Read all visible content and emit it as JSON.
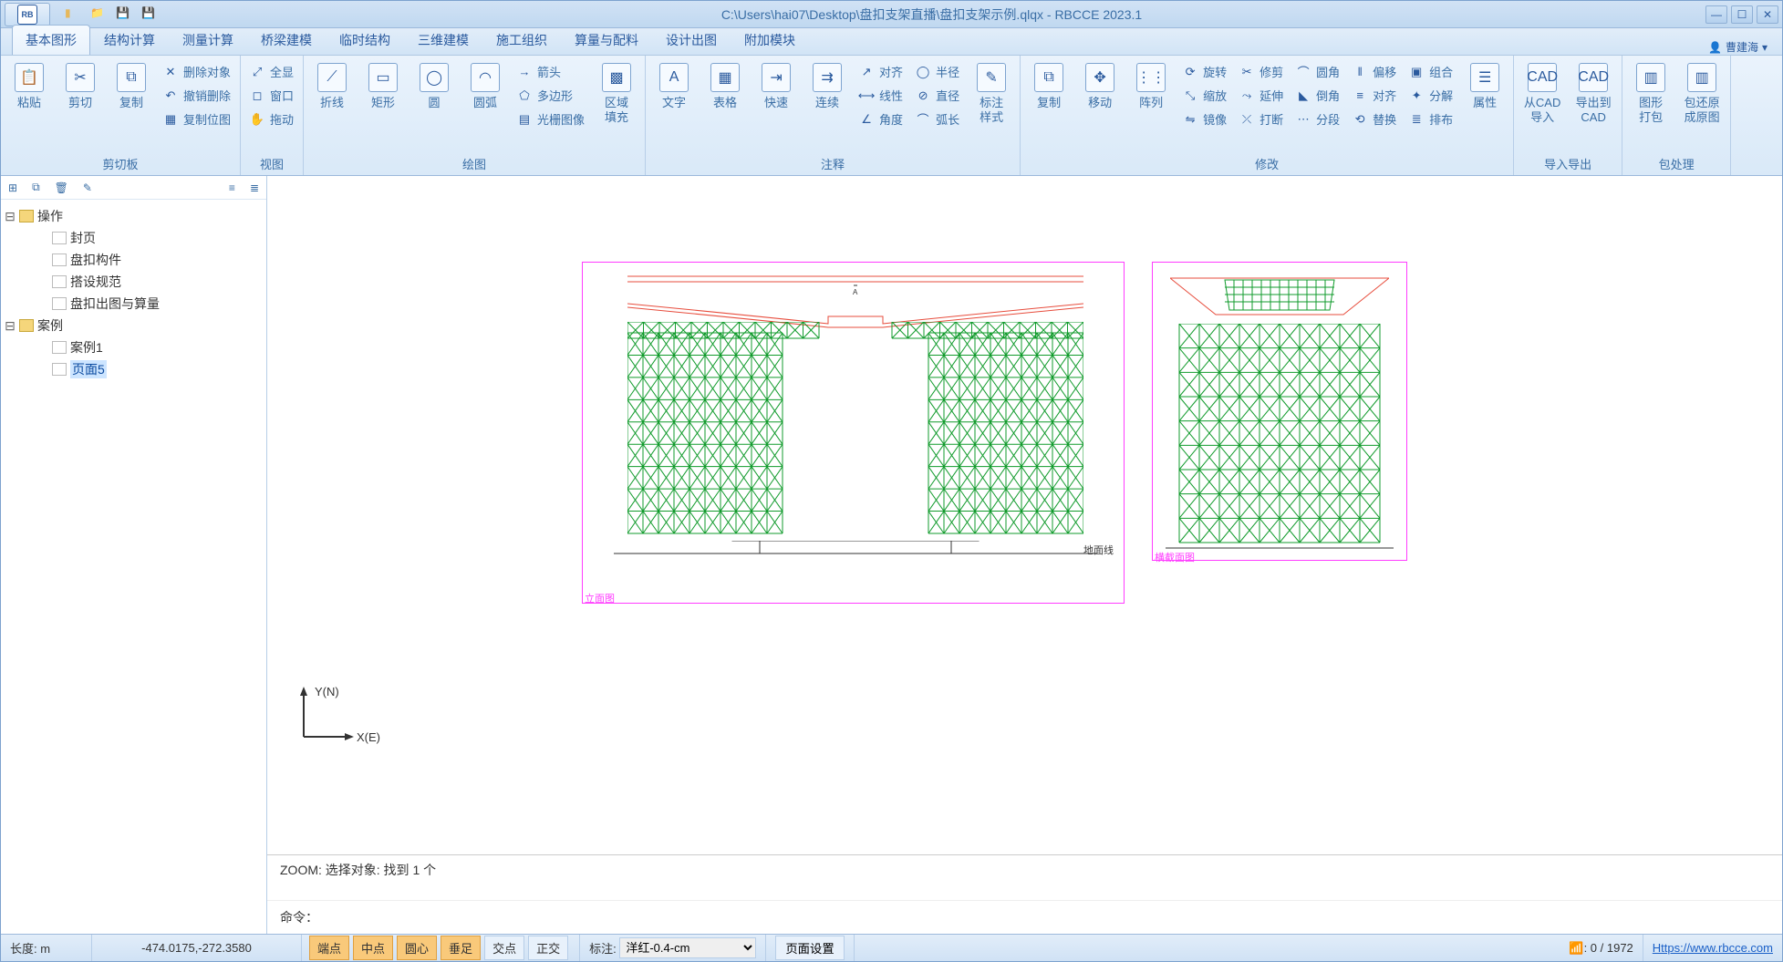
{
  "window": {
    "title": "C:\\Users\\hai07\\Desktop\\盘扣支架直播\\盘扣支架示例.qlqx - RBCCE 2023.1",
    "app_badge": "RB"
  },
  "user": {
    "name": "曹建海"
  },
  "tabs": {
    "items": [
      "基本图形",
      "结构计算",
      "测量计算",
      "桥梁建模",
      "临时结构",
      "三维建模",
      "施工组织",
      "算量与配料",
      "设计出图",
      "附加模块"
    ],
    "active_index": 0
  },
  "ribbon": {
    "groups": [
      {
        "label": "剪切板",
        "big": [
          {
            "name": "paste-button",
            "icon": "📋",
            "text": "粘贴"
          },
          {
            "name": "cut-button",
            "icon": "✂",
            "text": "剪切"
          },
          {
            "name": "copy-button",
            "icon": "⧉",
            "text": "复制"
          }
        ],
        "small": [
          {
            "name": "delete-object",
            "icon": "✕",
            "text": "删除对象"
          },
          {
            "name": "undo-delete",
            "icon": "↶",
            "text": "撤销删除"
          },
          {
            "name": "copy-bitmap",
            "icon": "▦",
            "text": "复制位图"
          }
        ]
      },
      {
        "label": "视图",
        "small": [
          {
            "name": "show-all",
            "icon": "⤢",
            "text": "全显"
          },
          {
            "name": "window-zoom",
            "icon": "◻",
            "text": "窗口"
          },
          {
            "name": "pan",
            "icon": "✋",
            "text": "拖动"
          }
        ]
      },
      {
        "label": "绘图",
        "big": [
          {
            "name": "polyline-button",
            "icon": "⟋",
            "text": "折线"
          },
          {
            "name": "rect-button",
            "icon": "▭",
            "text": "矩形"
          },
          {
            "name": "circle-button",
            "icon": "◯",
            "text": "圆"
          },
          {
            "name": "arc-button",
            "icon": "◠",
            "text": "圆弧"
          }
        ],
        "small": [
          {
            "name": "arrow",
            "icon": "→",
            "text": "箭头"
          },
          {
            "name": "polygon",
            "icon": "⬠",
            "text": "多边形"
          },
          {
            "name": "raster-image",
            "icon": "▤",
            "text": "光栅图像"
          }
        ],
        "big2": [
          {
            "name": "region-fill",
            "icon": "▩",
            "text": "区域\n填充"
          }
        ]
      },
      {
        "label": "注释",
        "big": [
          {
            "name": "text-button",
            "icon": "A",
            "text": "文字"
          },
          {
            "name": "table-button",
            "icon": "▦",
            "text": "表格"
          },
          {
            "name": "quick-button",
            "icon": "⇥",
            "text": "快速"
          },
          {
            "name": "continue-button",
            "icon": "⇉",
            "text": "连续"
          }
        ],
        "small": [
          {
            "name": "align-dim",
            "icon": "↗",
            "text": "对齐"
          },
          {
            "name": "linear-dim",
            "icon": "⟷",
            "text": "线性"
          },
          {
            "name": "angle-dim",
            "icon": "∠",
            "text": "角度"
          }
        ],
        "small2": [
          {
            "name": "radius-dim",
            "icon": "◯",
            "text": "半径"
          },
          {
            "name": "diameter-dim",
            "icon": "⊘",
            "text": "直径"
          },
          {
            "name": "arclen-dim",
            "icon": "⌒",
            "text": "弧长"
          }
        ],
        "big2": [
          {
            "name": "dim-style",
            "icon": "✎",
            "text": "标注\n样式"
          }
        ]
      },
      {
        "label": "修改",
        "big": [
          {
            "name": "mod-copy",
            "icon": "⧉",
            "text": "复制"
          },
          {
            "name": "mod-move",
            "icon": "✥",
            "text": "移动"
          },
          {
            "name": "mod-array",
            "icon": "⋮⋮",
            "text": "阵列"
          }
        ],
        "small": [
          {
            "name": "rotate",
            "icon": "⟳",
            "text": "旋转"
          },
          {
            "name": "scale",
            "icon": "⤡",
            "text": "缩放"
          },
          {
            "name": "mirror",
            "icon": "⇋",
            "text": "镜像"
          }
        ],
        "small2": [
          {
            "name": "trim",
            "icon": "✂",
            "text": "修剪"
          },
          {
            "name": "extend",
            "icon": "⤳",
            "text": "延伸"
          },
          {
            "name": "break",
            "icon": "⤫",
            "text": "打断"
          }
        ],
        "small3": [
          {
            "name": "fillet",
            "icon": "⌒",
            "text": "圆角"
          },
          {
            "name": "chamfer",
            "icon": "◣",
            "text": "倒角"
          },
          {
            "name": "divide",
            "icon": "⋯",
            "text": "分段"
          }
        ],
        "small4": [
          {
            "name": "offset",
            "icon": "‖",
            "text": "偏移"
          },
          {
            "name": "align",
            "icon": "≡",
            "text": "对齐"
          },
          {
            "name": "replace",
            "icon": "⟲",
            "text": "替换"
          }
        ],
        "small5": [
          {
            "name": "group",
            "icon": "▣",
            "text": "组合"
          },
          {
            "name": "explode",
            "icon": "✦",
            "text": "分解"
          },
          {
            "name": "arrange",
            "icon": "≣",
            "text": "排布"
          }
        ],
        "big2": [
          {
            "name": "properties",
            "icon": "☰",
            "text": "属性"
          }
        ]
      },
      {
        "label": "导入导出",
        "big": [
          {
            "name": "from-cad",
            "icon": "CAD",
            "text": "从CAD\n导入"
          },
          {
            "name": "to-cad",
            "icon": "CAD",
            "text": "导出到\nCAD"
          }
        ]
      },
      {
        "label": "包处理",
        "big": [
          {
            "name": "pack-graphics",
            "icon": "▥",
            "text": "图形\n打包"
          },
          {
            "name": "restore-pack",
            "icon": "▥",
            "text": "包还原\n成原图"
          }
        ]
      }
    ]
  },
  "tree": {
    "root1": {
      "label": "操作",
      "children": [
        "封页",
        "盘扣构件",
        "搭设规范",
        "盘扣出图与算量"
      ]
    },
    "root2": {
      "label": "案例",
      "children": [
        "案例1",
        "页面5"
      ],
      "selected_index": 1
    }
  },
  "canvas": {
    "axis_x": "X(E)",
    "axis_y": "Y(N)",
    "frame1_label": "立面图",
    "frame2_label": "横截面图",
    "ground_label": "地面线",
    "colors": {
      "frame": "#ff3cff",
      "girder": "#e74c3c",
      "scaffold": "#119b2c",
      "ground": "#333333"
    }
  },
  "command": {
    "log": "ZOOM: 选择对象: 找到 1 个",
    "prompt_label": "命令："
  },
  "status": {
    "length_label": "长度:  m",
    "coords": "-474.0175,-272.3580",
    "snaps": {
      "endpoint": "端点",
      "midpoint": "中点",
      "center": "圆心",
      "perp": "垂足",
      "inters": "交点",
      "ortho": "正交"
    },
    "dim_label": "标注:",
    "dim_style": "洋红-0.4-cm",
    "page_setup": "页面设置",
    "count": ": 0 / 1972",
    "url": "Https://www.rbcce.com"
  }
}
